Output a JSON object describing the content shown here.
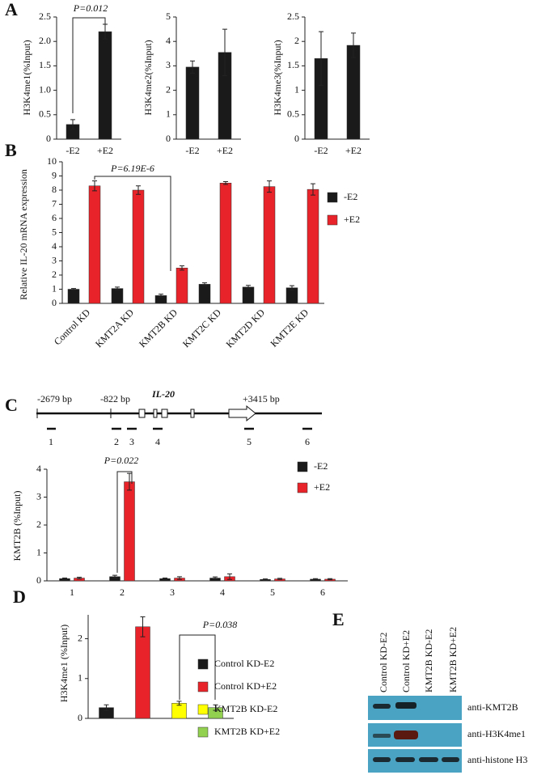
{
  "panels": [
    "A",
    "B",
    "C",
    "D",
    "E"
  ],
  "chart_data": [
    {
      "type": "bar",
      "ylabel": "H3K4me1(%Input)",
      "categories": [
        "-E2",
        "+E2"
      ],
      "values": [
        0.3,
        2.2
      ],
      "errors": [
        0.1,
        0.15
      ],
      "color": "#1a1a1a",
      "ylim": [
        0,
        2.5
      ],
      "yticks": [
        0,
        0.5,
        {
          "value": 1,
          "label": "1.0"
        },
        1.5,
        {
          "value": 2,
          "label": "2.0"
        },
        2.5
      ],
      "annotation": "P=0.012"
    },
    {
      "type": "bar",
      "ylabel": "H3K4me2(%Input)",
      "categories": [
        "-E2",
        "+E2"
      ],
      "values": [
        2.95,
        3.55
      ],
      "errors": [
        0.25,
        0.95
      ],
      "color": "#1a1a1a",
      "ylim": [
        0,
        5
      ],
      "yticks": [
        0,
        1,
        2,
        3,
        4,
        5
      ]
    },
    {
      "type": "bar",
      "ylabel": "H3K4me3(%Input)",
      "categories": [
        "-E2",
        "+E2"
      ],
      "values": [
        1.65,
        1.92
      ],
      "errors": [
        0.55,
        0.25
      ],
      "color": "#1a1a1a",
      "ylim": [
        0,
        2.5
      ],
      "yticks": [
        0,
        0.5,
        1,
        1.5,
        2,
        2.5
      ]
    },
    {
      "type": "grouped-bar",
      "ylabel": "Relative IL-20 mRNA expression",
      "categories": [
        "Control KD",
        "KMT2A KD",
        "KMT2B KD",
        "KMT2C KD",
        "KMT2D KD",
        "KMT2E KD"
      ],
      "series": [
        {
          "name": "-E2",
          "color": "#1a1a1a",
          "values": [
            1.0,
            1.05,
            0.55,
            1.35,
            1.15,
            1.1
          ],
          "errors": [
            0.05,
            0.1,
            0.1,
            0.1,
            0.12,
            0.15
          ]
        },
        {
          "name": "+E2",
          "color": "#e8242a",
          "values": [
            8.3,
            8.0,
            2.5,
            8.5,
            8.25,
            8.05
          ],
          "errors": [
            0.35,
            0.3,
            0.15,
            0.1,
            0.4,
            0.4
          ]
        }
      ],
      "ylim": [
        0,
        10
      ],
      "yticks": [
        0,
        1,
        2,
        3,
        4,
        5,
        6,
        7,
        8,
        9,
        10
      ],
      "annotation": "P=6.19E-6"
    },
    {
      "type": "grouped-bar",
      "ylabel": "KMT2B (%Input)",
      "categories": [
        "1",
        "2",
        "3",
        "4",
        "5",
        "6"
      ],
      "series": [
        {
          "name": "-E2",
          "color": "#1a1a1a",
          "values": [
            0.08,
            0.15,
            0.08,
            0.1,
            0.05,
            0.06
          ],
          "errors": [
            0.02,
            0.05,
            0.02,
            0.04,
            0.02,
            0.02
          ]
        },
        {
          "name": "+E2",
          "color": "#e8242a",
          "values": [
            0.1,
            3.55,
            0.1,
            0.15,
            0.07,
            0.06
          ],
          "errors": [
            0.03,
            0.3,
            0.05,
            0.1,
            0.02,
            0.02
          ]
        }
      ],
      "ylim": [
        0,
        4
      ],
      "yticks": [
        0,
        1,
        2,
        3,
        4
      ],
      "annotation": "P=0.022"
    },
    {
      "type": "colored-bar",
      "ylabel": "H3K4me1 (%Input)",
      "categories": [
        "Control KD-E2",
        "Control KD+E2",
        "KMT2B KD-E2",
        "KMT2B KD+E2"
      ],
      "values": [
        0.27,
        2.3,
        0.38,
        0.27
      ],
      "errors": [
        0.07,
        0.25,
        0.05,
        0.07
      ],
      "colors": [
        "#1a1a1a",
        "#e8242a",
        "#ffff00",
        "#92d050"
      ],
      "ylim": [
        0,
        2.6
      ],
      "yticks": [
        0,
        1,
        2
      ],
      "annotation": "P=0.038"
    }
  ],
  "gene_map": {
    "gene": "IL-20",
    "positions": [
      "-2679 bp",
      "-822 bp",
      "+3415 bp"
    ],
    "regions": [
      "1",
      "2",
      "3",
      "4",
      "5",
      "6"
    ]
  },
  "blot": {
    "lanes": [
      "Control KD-E2",
      "Control KD+E2",
      "KMT2B KD-E2",
      "KMT2B KD+E2"
    ],
    "antibodies": [
      "anti-KMT2B",
      "anti-H3K4me1",
      "anti-histone H3"
    ]
  }
}
